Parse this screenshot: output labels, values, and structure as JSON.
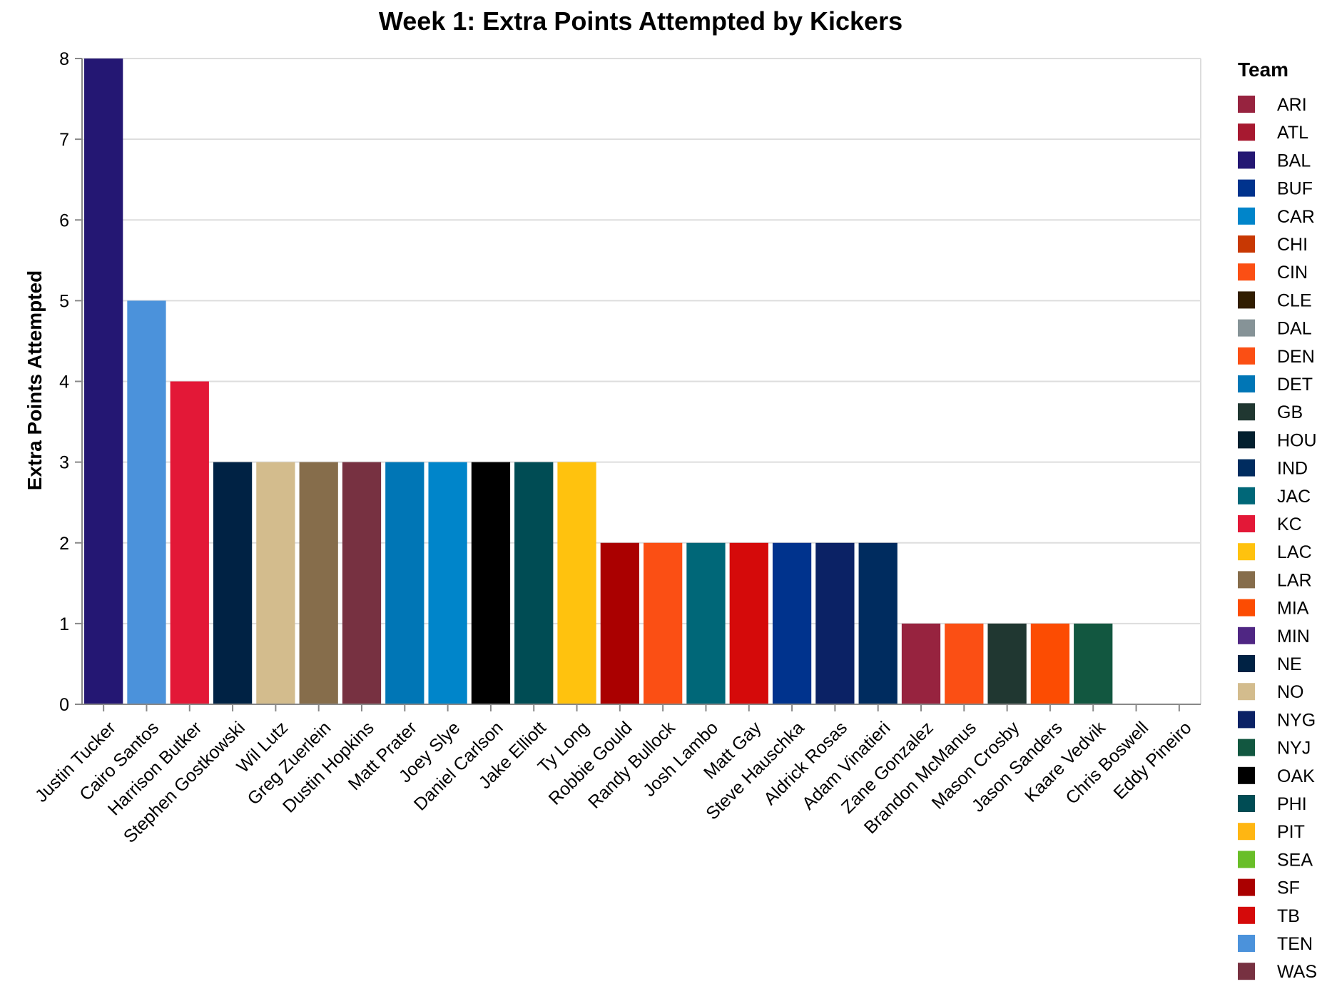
{
  "chart_data": {
    "type": "bar",
    "title": "Week 1: Extra Points Attempted by Kickers",
    "xlabel": "",
    "ylabel": "Extra Points Attempted",
    "ylim": [
      0,
      8
    ],
    "yticks": [
      0,
      1,
      2,
      3,
      4,
      5,
      6,
      7,
      8
    ],
    "grid": true,
    "legend_title": "Team",
    "legend_position": "right",
    "bars": [
      {
        "player": "Justin Tucker",
        "team": "BAL",
        "value": 8
      },
      {
        "player": "Cairo Santos",
        "team": "TEN",
        "value": 5
      },
      {
        "player": "Harrison Butker",
        "team": "KC",
        "value": 4
      },
      {
        "player": "Stephen Gostkowski",
        "team": "NE",
        "value": 3
      },
      {
        "player": "Wil Lutz",
        "team": "NO",
        "value": 3
      },
      {
        "player": "Greg Zuerlein",
        "team": "LAR",
        "value": 3
      },
      {
        "player": "Dustin Hopkins",
        "team": "WAS",
        "value": 3
      },
      {
        "player": "Matt Prater",
        "team": "DET",
        "value": 3
      },
      {
        "player": "Joey Slye",
        "team": "CAR",
        "value": 3
      },
      {
        "player": "Daniel Carlson",
        "team": "OAK",
        "value": 3
      },
      {
        "player": "Jake Elliott",
        "team": "PHI",
        "value": 3
      },
      {
        "player": "Ty Long",
        "team": "LAC",
        "value": 3
      },
      {
        "player": "Robbie Gould",
        "team": "SF",
        "value": 2
      },
      {
        "player": "Randy Bullock",
        "team": "CIN",
        "value": 2
      },
      {
        "player": "Josh Lambo",
        "team": "JAC",
        "value": 2
      },
      {
        "player": "Matt Gay",
        "team": "TB",
        "value": 2
      },
      {
        "player": "Steve Hauschka",
        "team": "BUF",
        "value": 2
      },
      {
        "player": "Aldrick Rosas",
        "team": "NYG",
        "value": 2
      },
      {
        "player": "Adam Vinatieri",
        "team": "IND",
        "value": 2
      },
      {
        "player": "Zane Gonzalez",
        "team": "ARI",
        "value": 1
      },
      {
        "player": "Brandon McManus",
        "team": "DEN",
        "value": 1
      },
      {
        "player": "Mason Crosby",
        "team": "GB",
        "value": 1
      },
      {
        "player": "Jason Sanders",
        "team": "MIA",
        "value": 1
      },
      {
        "player": "Kaare Vedvik",
        "team": "NYJ",
        "value": 1
      },
      {
        "player": "Chris Boswell",
        "team": "PIT",
        "value": 0
      },
      {
        "player": "Eddy Pineiro",
        "team": "CHI",
        "value": 0
      }
    ],
    "legend": [
      {
        "team": "ARI",
        "color": "#97233F"
      },
      {
        "team": "ATL",
        "color": "#A71930"
      },
      {
        "team": "BAL",
        "color": "#241773"
      },
      {
        "team": "BUF",
        "color": "#00338D"
      },
      {
        "team": "CAR",
        "color": "#0085CA"
      },
      {
        "team": "CHI",
        "color": "#C83803"
      },
      {
        "team": "CIN",
        "color": "#FB4F14"
      },
      {
        "team": "CLE",
        "color": "#311D00"
      },
      {
        "team": "DAL",
        "color": "#869397"
      },
      {
        "team": "DEN",
        "color": "#FB4F14"
      },
      {
        "team": "DET",
        "color": "#0076B6"
      },
      {
        "team": "GB",
        "color": "#203731"
      },
      {
        "team": "HOU",
        "color": "#03202F"
      },
      {
        "team": "IND",
        "color": "#002C5F"
      },
      {
        "team": "JAC",
        "color": "#006778"
      },
      {
        "team": "KC",
        "color": "#E31837"
      },
      {
        "team": "LAC",
        "color": "#FFC20E"
      },
      {
        "team": "LAR",
        "color": "#866D4B"
      },
      {
        "team": "MIA",
        "color": "#FC4C02"
      },
      {
        "team": "MIN",
        "color": "#4F2683"
      },
      {
        "team": "NE",
        "color": "#002244"
      },
      {
        "team": "NO",
        "color": "#D3BC8D"
      },
      {
        "team": "NYG",
        "color": "#0B2265"
      },
      {
        "team": "NYJ",
        "color": "#125740"
      },
      {
        "team": "OAK",
        "color": "#000000"
      },
      {
        "team": "PHI",
        "color": "#004C54"
      },
      {
        "team": "PIT",
        "color": "#FFB612"
      },
      {
        "team": "SEA",
        "color": "#69BE28"
      },
      {
        "team": "SF",
        "color": "#AA0000"
      },
      {
        "team": "TB",
        "color": "#D50A0A"
      },
      {
        "team": "TEN",
        "color": "#4B92DB"
      },
      {
        "team": "WAS",
        "color": "#773141"
      }
    ]
  }
}
